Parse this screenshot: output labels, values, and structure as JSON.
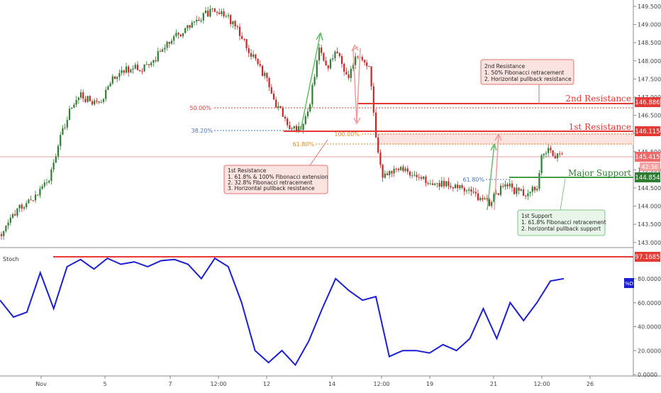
{
  "price_axis": {
    "ticks": [
      "149.500",
      "149.000",
      "148.500",
      "148.000",
      "147.500",
      "147.000",
      "146.500",
      "146.000",
      "145.500",
      "145.000",
      "144.500",
      "144.000",
      "143.500",
      "143.000"
    ]
  },
  "osc_axis": {
    "ticks": [
      "80.0000",
      "60.0000",
      "40.0000",
      "20.0000",
      "0.0000"
    ]
  },
  "x_axis": {
    "labels": [
      "Nov",
      "5",
      "7",
      "12:00",
      "12",
      "14",
      "12:00",
      "19",
      "21",
      "12:00",
      "26"
    ]
  },
  "price_labels": {
    "res2": "146.886",
    "res1": "146.115",
    "current": "145.415",
    "countdown": "42:36",
    "support": "144.854",
    "stoch_level": "97.1685",
    "d_tag": "%D"
  },
  "levels": {
    "res2_label": "2nd Resistance",
    "res1_label": "1st Resistance",
    "support_label": "Major Support"
  },
  "fib": {
    "fib50": "50.00%",
    "fib382": "38.20%",
    "fib100": "100.00%",
    "fib618": "61.80%",
    "fib618b": "61.80%"
  },
  "annotations": {
    "res2_box": [
      "2nd Resistance",
      "1. 50% Fibonacci retracement",
      "2. Horizontal pullback resistance"
    ],
    "res1_box": [
      "1st Resistance",
      "1. 61.8% & 100% Fibonacci extension",
      "2. 32.8% Fibonacci retracement",
      "3. Horizontal pullback resistance"
    ],
    "sup_box": [
      "1st Support",
      "1. 61.8% Fibonacci retracement",
      "2. horizontal pullback support"
    ]
  },
  "osc_title": "Stoch",
  "colors": {
    "up": "#2e7d32",
    "down": "#c62828",
    "resistance": "#e53935",
    "support": "#43a047",
    "stoch": "#1a1fd6",
    "current": "#e57373"
  },
  "chart_data": [
    {
      "type": "candlestick",
      "approx_close": [
        {
          "x": "Nov 1",
          "y": 143.4
        },
        {
          "x": "Nov 4",
          "y": 145.9
        },
        {
          "x": "Nov 6",
          "y": 147.4
        },
        {
          "x": "Nov 7",
          "y": 148.9
        },
        {
          "x": "Nov 8 12:00",
          "y": 149.3
        },
        {
          "x": "Nov 11",
          "y": 148.3
        },
        {
          "x": "Nov 12",
          "y": 146.2
        },
        {
          "x": "Nov 13",
          "y": 148.3
        },
        {
          "x": "Nov 14",
          "y": 148.0
        },
        {
          "x": "Nov 15",
          "y": 147.1
        },
        {
          "x": "Nov 15 12:00",
          "y": 145.1
        },
        {
          "x": "Nov 18",
          "y": 144.9
        },
        {
          "x": "Nov 19",
          "y": 144.7
        },
        {
          "x": "Nov 20",
          "y": 144.5
        },
        {
          "x": "Nov 21",
          "y": 144.1
        },
        {
          "x": "Nov 21 12:00",
          "y": 144.8
        },
        {
          "x": "Nov 22",
          "y": 144.4
        },
        {
          "x": "Nov 22 12:00",
          "y": 145.45
        }
      ],
      "levels": {
        "second_resistance": 146.886,
        "first_resistance": 146.115,
        "current": 145.415,
        "major_support": 144.854
      },
      "ylim": [
        142.9,
        149.6
      ]
    },
    {
      "type": "line",
      "series": [
        {
          "name": "%D",
          "values": [
            62,
            48,
            52,
            85,
            55,
            90,
            96,
            88,
            97,
            92,
            94,
            90,
            95,
            96,
            92,
            80,
            97,
            90,
            60,
            20,
            10,
            20,
            8,
            28,
            55,
            80,
            70,
            62,
            65,
            15,
            20,
            20,
            18,
            25,
            20,
            30,
            55,
            30,
            60,
            45,
            60,
            78,
            80
          ]
        }
      ],
      "ylim": [
        0,
        100
      ],
      "reference_level": 97.1685
    }
  ]
}
